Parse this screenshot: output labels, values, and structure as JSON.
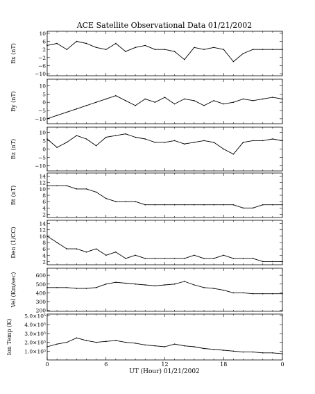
{
  "title": "ACE Satellite Observational Data   01/21/2002",
  "xlabel": "UT (Hour)  01/21/2002",
  "x_tick_labels": [
    "0",
    "6",
    "12",
    "18",
    "0"
  ],
  "chart_data": [
    {
      "type": "line",
      "ylabel": "Bx (nT)",
      "ylim": [
        -11,
        11
      ],
      "yticks": [
        10,
        6,
        2,
        -2,
        -6,
        -10
      ],
      "ytick_labels": [
        "10",
        "6",
        "2",
        "−2",
        "−6",
        "−10"
      ],
      "x": [
        0,
        1,
        2,
        3,
        4,
        5,
        6,
        7,
        8,
        9,
        10,
        11,
        12,
        13,
        14,
        15,
        16,
        17,
        18,
        19,
        20,
        21,
        22,
        23,
        24
      ],
      "values": [
        4,
        5,
        2,
        6,
        5,
        3,
        2,
        5,
        1,
        3,
        4,
        2,
        2,
        1,
        -3,
        3,
        2,
        3,
        2,
        -4,
        0,
        2,
        2,
        2,
        2
      ]
    },
    {
      "type": "line",
      "ylabel": "By (nT)",
      "ylim": [
        -13,
        14
      ],
      "yticks": [
        10,
        5,
        0,
        -5,
        -10
      ],
      "ytick_labels": [
        "10",
        "5",
        "0",
        "−5",
        "−10"
      ],
      "x": [
        0,
        1,
        2,
        3,
        4,
        5,
        6,
        7,
        8,
        9,
        10,
        11,
        12,
        13,
        14,
        15,
        16,
        17,
        18,
        19,
        20,
        21,
        22,
        23,
        24
      ],
      "values": [
        -10,
        -8,
        -6,
        -4,
        -2,
        0,
        2,
        4,
        1,
        -2,
        2,
        0,
        3,
        -1,
        2,
        1,
        -2,
        1,
        -1,
        0,
        2,
        1,
        2,
        3,
        2
      ]
    },
    {
      "type": "line",
      "ylabel": "Bz (nT)",
      "ylim": [
        -13,
        13
      ],
      "yticks": [
        10,
        5,
        0,
        -5,
        -10
      ],
      "ytick_labels": [
        "10",
        "5",
        "0",
        "−5",
        "−10"
      ],
      "x": [
        0,
        1,
        2,
        3,
        4,
        5,
        6,
        7,
        8,
        9,
        10,
        11,
        12,
        13,
        14,
        15,
        16,
        17,
        18,
        19,
        20,
        21,
        22,
        23,
        24
      ],
      "values": [
        6,
        1,
        4,
        8,
        6,
        2,
        7,
        8,
        9,
        7,
        6,
        4,
        4,
        5,
        3,
        4,
        5,
        4,
        0,
        -3,
        4,
        5,
        5,
        6,
        5
      ]
    },
    {
      "type": "line",
      "ylabel": "Bt (nT)",
      "ylim": [
        1,
        15
      ],
      "yticks": [
        14,
        12,
        10,
        8,
        6,
        4,
        2
      ],
      "ytick_labels": [
        "14",
        "12",
        "10",
        "8",
        "6",
        "4",
        "2"
      ],
      "x": [
        0,
        1,
        2,
        3,
        4,
        5,
        6,
        7,
        8,
        9,
        10,
        11,
        12,
        13,
        14,
        15,
        16,
        17,
        18,
        19,
        20,
        21,
        22,
        23,
        24
      ],
      "values": [
        11,
        11,
        11,
        10,
        10,
        9,
        7,
        6,
        6,
        6,
        5,
        5,
        5,
        5,
        5,
        5,
        5,
        5,
        5,
        5,
        4,
        4,
        5,
        5,
        5
      ]
    },
    {
      "type": "line",
      "ylabel": "Den (1/CC)",
      "ylim": [
        1,
        15
      ],
      "yticks": [
        14,
        12,
        10,
        8,
        6,
        4,
        2
      ],
      "ytick_labels": [
        "14",
        "12",
        "10",
        "8",
        "6",
        "4",
        "2"
      ],
      "x": [
        0,
        1,
        2,
        3,
        4,
        5,
        6,
        7,
        8,
        9,
        10,
        11,
        12,
        13,
        14,
        15,
        16,
        17,
        18,
        19,
        20,
        21,
        22,
        23,
        24
      ],
      "values": [
        10,
        8,
        6,
        6,
        5,
        6,
        4,
        5,
        3,
        4,
        3,
        3,
        3,
        3,
        3,
        4,
        3,
        3,
        4,
        3,
        3,
        3,
        2,
        2,
        2
      ]
    },
    {
      "type": "line",
      "ylabel": "Vel (Km/sec)",
      "ylim": [
        190,
        680
      ],
      "yticks": [
        600,
        500,
        400,
        300,
        200
      ],
      "ytick_labels": [
        "600",
        "500",
        "400",
        "300",
        "200"
      ],
      "x": [
        0,
        1,
        2,
        3,
        4,
        5,
        6,
        7,
        8,
        9,
        10,
        11,
        12,
        13,
        14,
        15,
        16,
        17,
        18,
        19,
        20,
        21,
        22,
        23,
        24
      ],
      "values": [
        460,
        460,
        460,
        450,
        450,
        460,
        500,
        520,
        510,
        500,
        490,
        480,
        490,
        500,
        530,
        490,
        460,
        450,
        430,
        400,
        400,
        390,
        390,
        390,
        390
      ]
    },
    {
      "type": "line",
      "ylabel": "Ion Temp (K)",
      "ylim": [
        0,
        520000
      ],
      "yticks": [
        500000,
        400000,
        300000,
        200000,
        100000
      ],
      "ytick_labels": [
        "5.0×10⁵",
        "4.0×10⁵",
        "3.0×10⁵",
        "2.0×10⁵",
        "1.0×10⁵"
      ],
      "x": [
        0,
        1,
        2,
        3,
        4,
        5,
        6,
        7,
        8,
        9,
        10,
        11,
        12,
        13,
        14,
        15,
        16,
        17,
        18,
        19,
        20,
        21,
        22,
        23,
        24
      ],
      "values": [
        150000,
        180000,
        200000,
        250000,
        220000,
        200000,
        210000,
        220000,
        200000,
        190000,
        170000,
        160000,
        150000,
        180000,
        160000,
        150000,
        130000,
        120000,
        110000,
        100000,
        90000,
        90000,
        80000,
        80000,
        70000
      ]
    }
  ]
}
